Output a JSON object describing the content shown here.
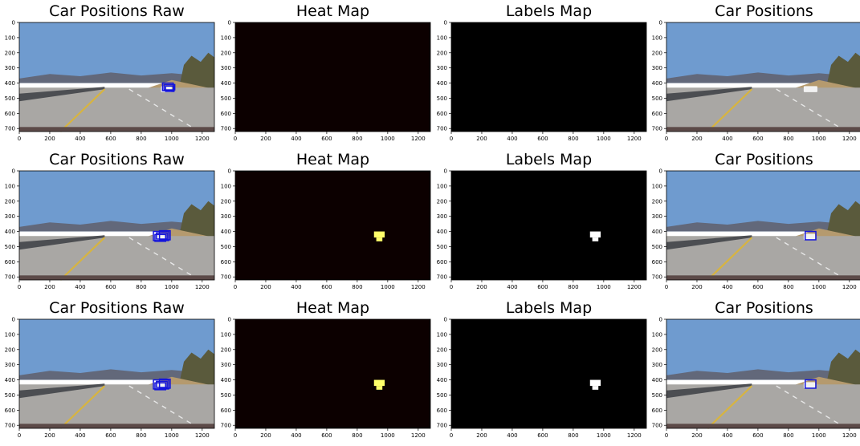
{
  "colors": {
    "sky": "#6f9bcf",
    "mountain": "#62687a",
    "road": "#a9a7a4",
    "heat_bg": "#0c0000",
    "heat_hot": "#ffff6a",
    "label_bg": "#000000",
    "label_fg": "#ffffff",
    "box": "#1414dc",
    "car": "#f2f2f2"
  },
  "chart_data": [
    {
      "type": "heatmap",
      "row": 0,
      "col": 0,
      "title": "Car Positions Raw",
      "content": "road-image",
      "xlim": [
        0,
        1280
      ],
      "ylim": [
        720,
        0
      ],
      "xticks": [
        0,
        200,
        400,
        600,
        800,
        1000,
        1200
      ],
      "yticks": [
        0,
        100,
        200,
        300,
        400,
        500,
        600,
        700
      ],
      "boxes": [
        [
          940,
          400,
          1010,
          450
        ],
        [
          950,
          410,
          1020,
          445
        ],
        [
          960,
          420,
          1015,
          455
        ]
      ],
      "car": [
        930,
        420,
        1000,
        460
      ]
    },
    {
      "type": "heatmap",
      "row": 0,
      "col": 1,
      "title": "Heat Map",
      "content": "heat",
      "xlim": [
        0,
        1280
      ],
      "ylim": [
        720,
        0
      ],
      "xticks": [
        0,
        200,
        400,
        600,
        800,
        1000,
        1200
      ],
      "yticks": [
        0,
        100,
        200,
        300,
        400,
        500,
        600,
        700
      ],
      "blob": null
    },
    {
      "type": "heatmap",
      "row": 0,
      "col": 2,
      "title": "Labels Map",
      "content": "labels",
      "xlim": [
        0,
        1280
      ],
      "ylim": [
        720,
        0
      ],
      "xticks": [
        0,
        200,
        400,
        600,
        800,
        1000,
        1200
      ],
      "yticks": [
        0,
        100,
        200,
        300,
        400,
        500,
        600,
        700
      ],
      "blob": null
    },
    {
      "type": "heatmap",
      "row": 0,
      "col": 3,
      "title": "Car Positions",
      "content": "road-image",
      "xlim": [
        0,
        1280
      ],
      "ylim": [
        720,
        0
      ],
      "xticks": [
        0,
        200,
        400,
        600,
        800,
        1000,
        1200
      ],
      "yticks": [
        0,
        100,
        200,
        300,
        400,
        500,
        600,
        700
      ],
      "boxes": [],
      "car": [
        900,
        420,
        990,
        460
      ]
    },
    {
      "type": "heatmap",
      "row": 1,
      "col": 0,
      "title": "Car Positions Raw",
      "content": "road-image",
      "xlim": [
        0,
        1280
      ],
      "ylim": [
        720,
        0
      ],
      "xticks": [
        0,
        200,
        400,
        600,
        800,
        1000,
        1200
      ],
      "yticks": [
        0,
        100,
        200,
        300,
        400,
        500,
        600,
        700
      ],
      "boxes": [
        [
          880,
          400,
          980,
          460
        ],
        [
          900,
          410,
          970,
          450
        ],
        [
          920,
          395,
          990,
          455
        ],
        [
          890,
          420,
          960,
          465
        ]
      ],
      "car": [
        880,
        415,
        960,
        455
      ]
    },
    {
      "type": "heatmap",
      "row": 1,
      "col": 1,
      "title": "Heat Map",
      "content": "heat",
      "xlim": [
        0,
        1280
      ],
      "ylim": [
        720,
        0
      ],
      "xticks": [
        0,
        200,
        400,
        600,
        800,
        1000,
        1200
      ],
      "yticks": [
        0,
        100,
        200,
        300,
        400,
        500,
        600,
        700
      ],
      "blob": [
        910,
        400,
        980,
        455
      ]
    },
    {
      "type": "heatmap",
      "row": 1,
      "col": 2,
      "title": "Labels Map",
      "content": "labels",
      "xlim": [
        0,
        1280
      ],
      "ylim": [
        720,
        0
      ],
      "xticks": [
        0,
        200,
        400,
        600,
        800,
        1000,
        1200
      ],
      "yticks": [
        0,
        100,
        200,
        300,
        400,
        500,
        600,
        700
      ],
      "blob": [
        910,
        400,
        980,
        455
      ]
    },
    {
      "type": "heatmap",
      "row": 1,
      "col": 3,
      "title": "Car Positions",
      "content": "road-image",
      "xlim": [
        0,
        1280
      ],
      "ylim": [
        720,
        0
      ],
      "xticks": [
        0,
        200,
        400,
        600,
        800,
        1000,
        1200
      ],
      "yticks": [
        0,
        100,
        200,
        300,
        400,
        500,
        600,
        700
      ],
      "boxes": [
        [
          910,
          400,
          980,
          455
        ]
      ],
      "car": [
        900,
        415,
        975,
        455
      ]
    },
    {
      "type": "heatmap",
      "row": 2,
      "col": 0,
      "title": "Car Positions Raw",
      "content": "road-image",
      "xlim": [
        0,
        1280
      ],
      "ylim": [
        720,
        0
      ],
      "xticks": [
        0,
        200,
        400,
        600,
        800,
        1000,
        1200
      ],
      "yticks": [
        0,
        100,
        200,
        300,
        400,
        500,
        600,
        700
      ],
      "boxes": [
        [
          880,
          400,
          980,
          460
        ],
        [
          900,
          410,
          970,
          450
        ],
        [
          920,
          395,
          990,
          455
        ],
        [
          890,
          420,
          960,
          465
        ]
      ],
      "car": [
        880,
        415,
        960,
        455
      ]
    },
    {
      "type": "heatmap",
      "row": 2,
      "col": 1,
      "title": "Heat Map",
      "content": "heat",
      "xlim": [
        0,
        1280
      ],
      "ylim": [
        720,
        0
      ],
      "xticks": [
        0,
        200,
        400,
        600,
        800,
        1000,
        1200
      ],
      "yticks": [
        0,
        100,
        200,
        300,
        400,
        500,
        600,
        700
      ],
      "blob": [
        910,
        400,
        980,
        455
      ]
    },
    {
      "type": "heatmap",
      "row": 2,
      "col": 2,
      "title": "Labels Map",
      "content": "labels",
      "xlim": [
        0,
        1280
      ],
      "ylim": [
        720,
        0
      ],
      "xticks": [
        0,
        200,
        400,
        600,
        800,
        1000,
        1200
      ],
      "yticks": [
        0,
        100,
        200,
        300,
        400,
        500,
        600,
        700
      ],
      "blob": [
        910,
        400,
        980,
        455
      ]
    },
    {
      "type": "heatmap",
      "row": 2,
      "col": 3,
      "title": "Car Positions",
      "content": "road-image",
      "xlim": [
        0,
        1280
      ],
      "ylim": [
        720,
        0
      ],
      "xticks": [
        0,
        200,
        400,
        600,
        800,
        1000,
        1200
      ],
      "yticks": [
        0,
        100,
        200,
        300,
        400,
        500,
        600,
        700
      ],
      "boxes": [
        [
          910,
          400,
          980,
          455
        ]
      ],
      "car": [
        900,
        415,
        975,
        455
      ]
    }
  ]
}
